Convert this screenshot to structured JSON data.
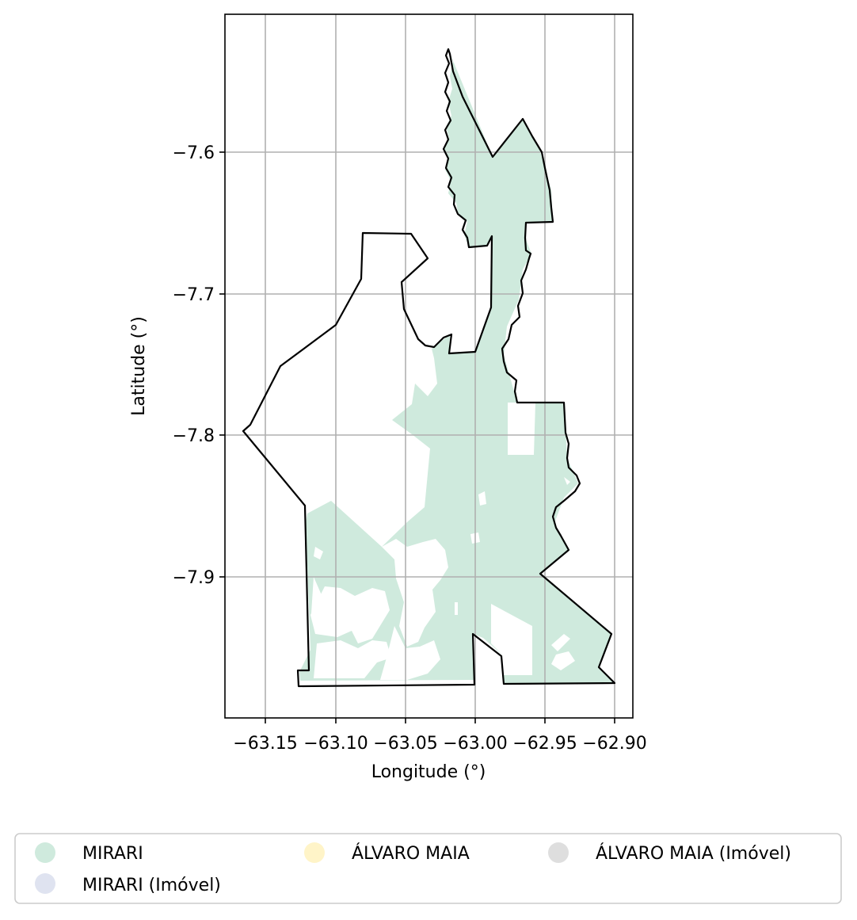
{
  "chart_data": {
    "type": "map",
    "xlabel": "Longitude (°)",
    "ylabel": "Latitude (°)",
    "xlim": [
      -63.178,
      -62.888
    ],
    "ylim": [
      -8.002,
      -7.503
    ],
    "xticks": [
      -63.15,
      -63.1,
      -63.05,
      -63.0,
      -62.95,
      -62.9
    ],
    "xtick_labels": [
      "−63.15",
      "−63.10",
      "−63.05",
      "−63.00",
      "−62.95",
      "−62.90"
    ],
    "yticks": [
      -7.6,
      -7.7,
      -7.8,
      -7.9
    ],
    "ytick_labels": [
      "−7.6",
      "−7.7",
      "−7.8",
      "−7.9"
    ],
    "grid": true,
    "legend": {
      "placement": "bottom",
      "entries": [
        {
          "label": "MIRARI",
          "color": "#cfeadd"
        },
        {
          "label": "MIRARI (Imóvel)",
          "color": "#dfe3f0"
        },
        {
          "label": "ÁLVARO MAIA",
          "color": "#fff4c8"
        },
        {
          "label": "ÁLVARO MAIA (Imóvel)",
          "color": "#dedede"
        }
      ]
    },
    "boundary_color": "#000000",
    "fill_color": "#cfeadd"
  }
}
